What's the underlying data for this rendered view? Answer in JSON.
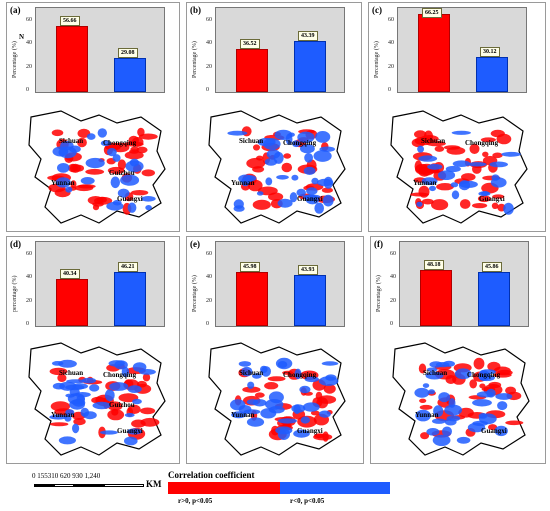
{
  "panels": [
    {
      "letter": "(a)",
      "ylabel": "Percentage (%)",
      "pos": 56.66,
      "neg": 29.08,
      "pos_label": "56.66",
      "neg_label": "29.08",
      "provinces": [
        "Sichuan",
        "Chongqing",
        "Guizhou",
        "Yunnan",
        "Guangxi"
      ]
    },
    {
      "letter": "(b)",
      "ylabel": "Percentage (%)",
      "pos": 36.52,
      "neg": 43.39,
      "pos_label": "36.52",
      "neg_label": "43.39",
      "provinces": [
        "Sichuan",
        "Chongqing",
        "Yunnan",
        "Guangxi"
      ]
    },
    {
      "letter": "(c)",
      "ylabel": "Percentage (%)",
      "pos": 66.25,
      "neg": 30.12,
      "pos_label": "66.25",
      "neg_label": "30.12",
      "provinces": [
        "Sichuan",
        "Chongqing",
        "Yunnan",
        "Guangxi"
      ]
    },
    {
      "letter": "(d)",
      "ylabel": "percentage (%)",
      "pos": 40.34,
      "neg": 46.21,
      "pos_label": "40.34",
      "neg_label": "46.21",
      "provinces": [
        "Sichuan",
        "Chongqing",
        "Guizhou",
        "Yunnan",
        "Guangxi"
      ]
    },
    {
      "letter": "(e)",
      "ylabel": "Percentage (%)",
      "pos": 45.98,
      "neg": 43.93,
      "pos_label": "45.98",
      "neg_label": "43.93",
      "provinces": [
        "Sichuan",
        "Chongqing",
        "Yunnan",
        "Guangxi"
      ]
    },
    {
      "letter": "(f)",
      "ylabel": "Percentage (%)",
      "pos": 48.18,
      "neg": 45.86,
      "pos_label": "48.18",
      "neg_label": "45.86",
      "provinces": [
        "Sichuan",
        "Chongqing",
        "Yunnan",
        "Guangxi"
      ]
    }
  ],
  "yticks": [
    "0",
    "20",
    "40",
    "60"
  ],
  "ymax": 70,
  "north_label": "N",
  "scale": {
    "labels": "0 155310   620    930   1,240",
    "unit": "KM"
  },
  "legend": {
    "title": "Correlation coefficient",
    "pos_label": "r>0, p<0.05",
    "neg_label": "r<0, p<0.05",
    "pos_color": "#ff0000",
    "neg_color": "#1e5cff"
  }
}
